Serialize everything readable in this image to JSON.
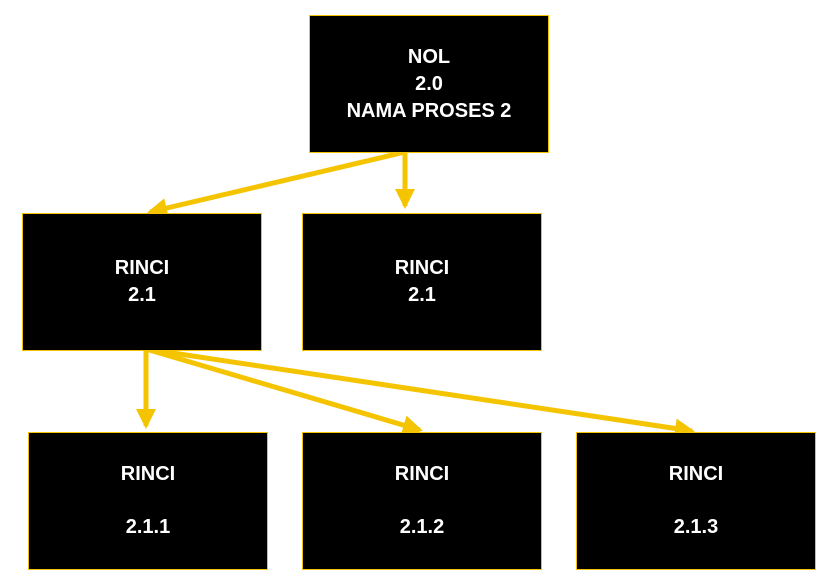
{
  "colors": {
    "node_fill": "#000000",
    "node_text": "#ffffff",
    "connector": "#f5c400",
    "background": "#ffffff"
  },
  "nodes": {
    "root": {
      "line1": "NOL",
      "line2": "2.0",
      "line3": "NAMA PROSES 2"
    },
    "child_a": {
      "line1": "RINCI",
      "line2": "2.1"
    },
    "child_b": {
      "line1": "RINCI",
      "line2": "2.1"
    },
    "grandchild_1": {
      "line1": "RINCI",
      "line2": "2.1.1"
    },
    "grandchild_2": {
      "line1": "RINCI",
      "line2": "2.1.2"
    },
    "grandchild_3": {
      "line1": "RINCI",
      "line2": "2.1.3"
    }
  },
  "edges": [
    {
      "from": "root",
      "to": "child_a"
    },
    {
      "from": "root",
      "to": "child_b"
    },
    {
      "from": "child_a",
      "to": "grandchild_1"
    },
    {
      "from": "child_a",
      "to": "grandchild_2"
    },
    {
      "from": "child_a",
      "to": "grandchild_3"
    }
  ]
}
